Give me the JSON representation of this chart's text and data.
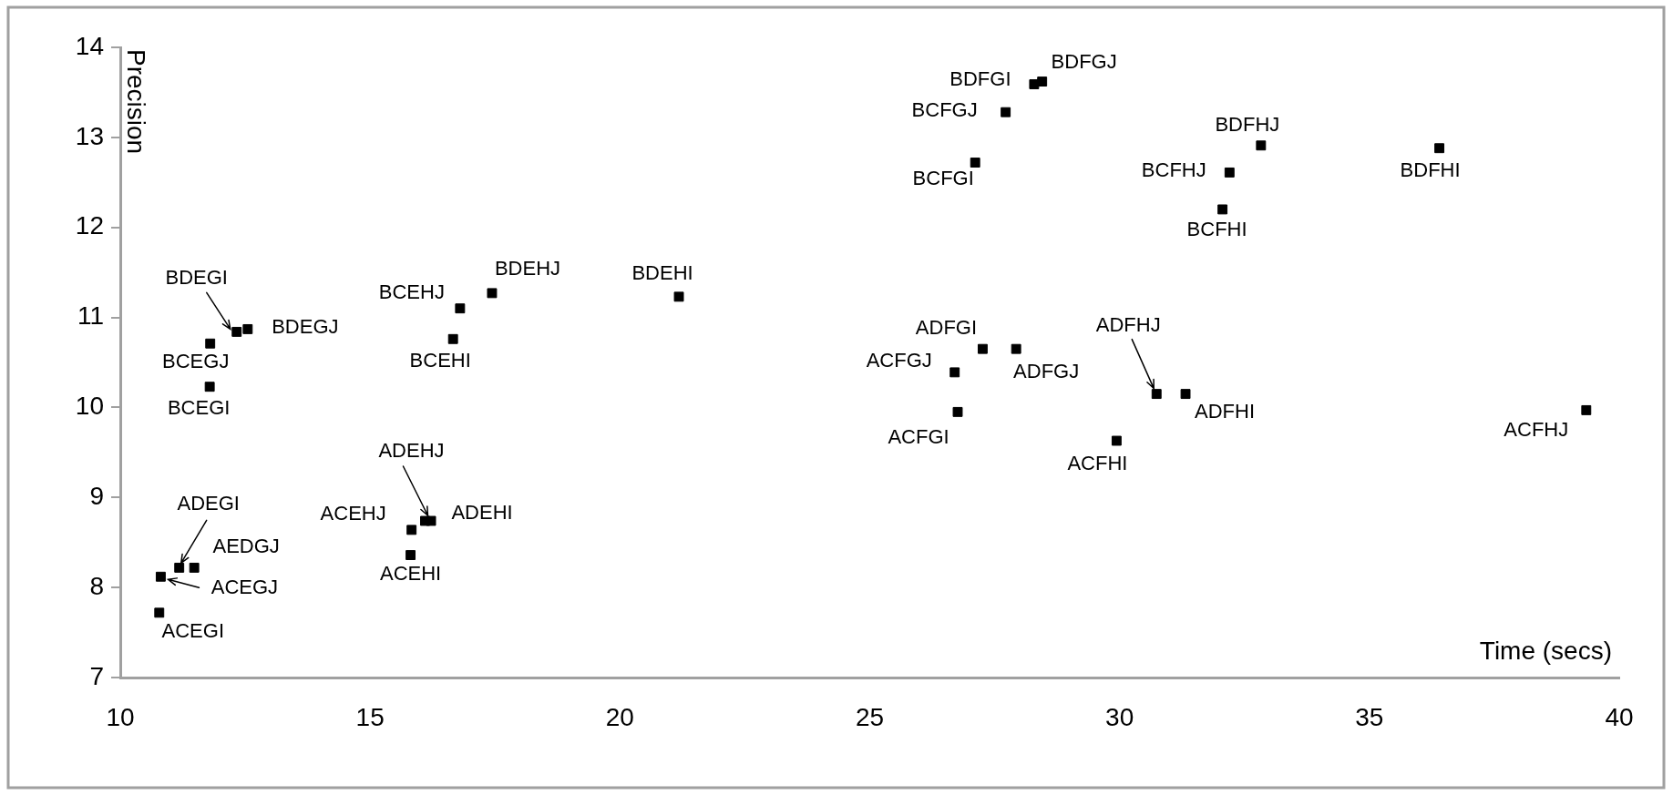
{
  "chart_data": {
    "type": "scatter",
    "xlabel": "Time (secs)",
    "ylabel": "Precision",
    "x": [
      10.78,
      10.81,
      11.18,
      11.48,
      11.79,
      11.8,
      12.33,
      12.55,
      16.66,
      16.8,
      17.44,
      21.18,
      15.83,
      16.1,
      16.22,
      15.81,
      28.29,
      28.45,
      27.72,
      27.11,
      32.83,
      32.2,
      32.06,
      36.4,
      27.26,
      27.93,
      26.7,
      26.76,
      29.94,
      30.74,
      31.32,
      39.34
    ],
    "values": [
      7.72,
      8.12,
      8.22,
      8.22,
      10.23,
      10.71,
      10.84,
      10.87,
      10.76,
      11.1,
      11.27,
      11.23,
      8.64,
      8.74,
      8.74,
      8.36,
      13.59,
      13.62,
      13.28,
      12.72,
      12.91,
      12.61,
      12.2,
      12.88,
      10.65,
      10.65,
      10.39,
      9.95,
      9.63,
      10.15,
      10.15,
      9.97
    ],
    "color": "#000000",
    "marker": "square",
    "grid": false,
    "legend": false,
    "xlim": [
      10,
      40
    ],
    "xticks": [
      10,
      15,
      20,
      25,
      30,
      35,
      40
    ],
    "ylim": [
      7,
      14
    ],
    "yticks": [
      7,
      8,
      9,
      10,
      11,
      12,
      13,
      14
    ],
    "annotations": [
      {
        "text": "ACEGI",
        "x": 10.78,
        "y": 7.72
      },
      {
        "text": "ACEGJ",
        "x": 10.81,
        "y": 8.12
      },
      {
        "text": "ADEGI",
        "x": 11.18,
        "y": 8.22
      },
      {
        "text": "AEDGJ",
        "x": 11.48,
        "y": 8.22
      },
      {
        "text": "BCEGI",
        "x": 11.79,
        "y": 10.23
      },
      {
        "text": "BCEGJ",
        "x": 11.8,
        "y": 10.71
      },
      {
        "text": "BDEGI",
        "x": 12.33,
        "y": 10.84
      },
      {
        "text": "BDEGJ",
        "x": 12.55,
        "y": 10.87
      },
      {
        "text": "BCEHI",
        "x": 16.66,
        "y": 10.76
      },
      {
        "text": "BCEHJ",
        "x": 16.8,
        "y": 11.1
      },
      {
        "text": "BDEHJ",
        "x": 17.44,
        "y": 11.27
      },
      {
        "text": "BDEHI",
        "x": 21.18,
        "y": 11.23
      },
      {
        "text": "ACEHJ",
        "x": 15.83,
        "y": 8.64
      },
      {
        "text": "ADEHJ",
        "x": 16.1,
        "y": 8.74
      },
      {
        "text": "ADEHI",
        "x": 16.22,
        "y": 8.74
      },
      {
        "text": "ACEHI",
        "x": 15.81,
        "y": 8.36
      },
      {
        "text": "BDFGI",
        "x": 28.29,
        "y": 13.59
      },
      {
        "text": "BDFGJ",
        "x": 28.45,
        "y": 13.62
      },
      {
        "text": "BCFGJ",
        "x": 27.72,
        "y": 13.28
      },
      {
        "text": "BCFGI",
        "x": 27.11,
        "y": 12.72
      },
      {
        "text": "BDFHJ",
        "x": 32.83,
        "y": 12.91
      },
      {
        "text": "BCFHJ",
        "x": 32.2,
        "y": 12.61
      },
      {
        "text": "BCFHI",
        "x": 32.06,
        "y": 12.2
      },
      {
        "text": "BDFHI",
        "x": 36.4,
        "y": 12.88
      },
      {
        "text": "ADFGI",
        "x": 27.26,
        "y": 10.65
      },
      {
        "text": "ADFGJ",
        "x": 27.93,
        "y": 10.65
      },
      {
        "text": "ACFGJ",
        "x": 26.7,
        "y": 10.39
      },
      {
        "text": "ACFGI",
        "x": 26.76,
        "y": 9.95
      },
      {
        "text": "ACFHI",
        "x": 29.94,
        "y": 9.63
      },
      {
        "text": "ADFHJ",
        "x": 30.74,
        "y": 10.15
      },
      {
        "text": "ADFHI",
        "x": 31.32,
        "y": 10.15
      },
      {
        "text": "ACFHJ",
        "x": 39.34,
        "y": 9.97
      }
    ]
  }
}
